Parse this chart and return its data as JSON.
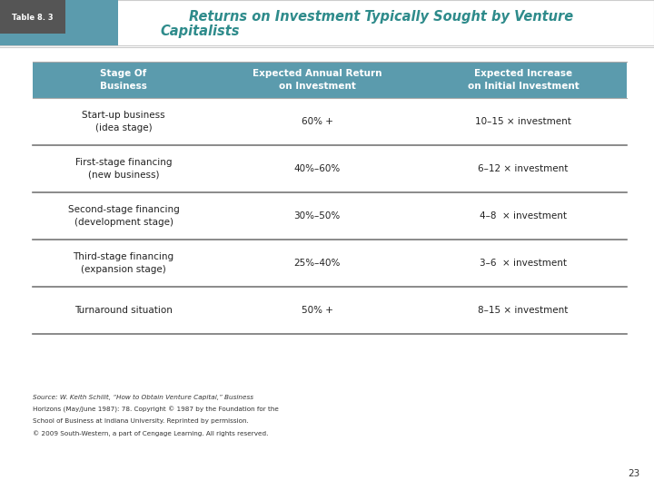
{
  "title_line1": "Returns on Investment Typically Sought by Venture",
  "title_line2": "Capitalists",
  "title_color": "#2E8B8B",
  "table_num": "Table 8. 3",
  "header_bg": "#5B9BAD",
  "header_text_color": "#FFFFFF",
  "col_headers": [
    "Stage Of\nBusiness",
    "Expected Annual Return\non Investment",
    "Expected Increase\non Initial Investment"
  ],
  "rows": [
    [
      "Start-up business\n(idea stage)",
      "60% +",
      "10–15 × investment"
    ],
    [
      "First-stage financing\n(new business)",
      "40%–60%",
      "6–12 × investment"
    ],
    [
      "Second-stage financing\n(development stage)",
      "30%–50%",
      "4–8  × investment"
    ],
    [
      "Third-stage financing\n(expansion stage)",
      "25%–40%",
      "3–6  × investment"
    ],
    [
      "Turnaround situation",
      "50% +",
      "8–15 × investment"
    ]
  ],
  "source_line1": "Source: W. Keith Schilit, “How to Obtain Venture Capital,” Business",
  "source_line2": "Horizons (May/June 1987): 78. Copyright © 1987 by the Foundation for the",
  "source_line3": "School of Business at Indiana University. Reprinted by permission.",
  "source_line4": "© 2009 South-Western, a part of Cengage Learning. All rights reserved.",
  "page_num": "23",
  "bg_color": "#FFFFFF",
  "divider_color": "#777777",
  "teal_color": "#5B9BAD",
  "dark_color": "#555555"
}
